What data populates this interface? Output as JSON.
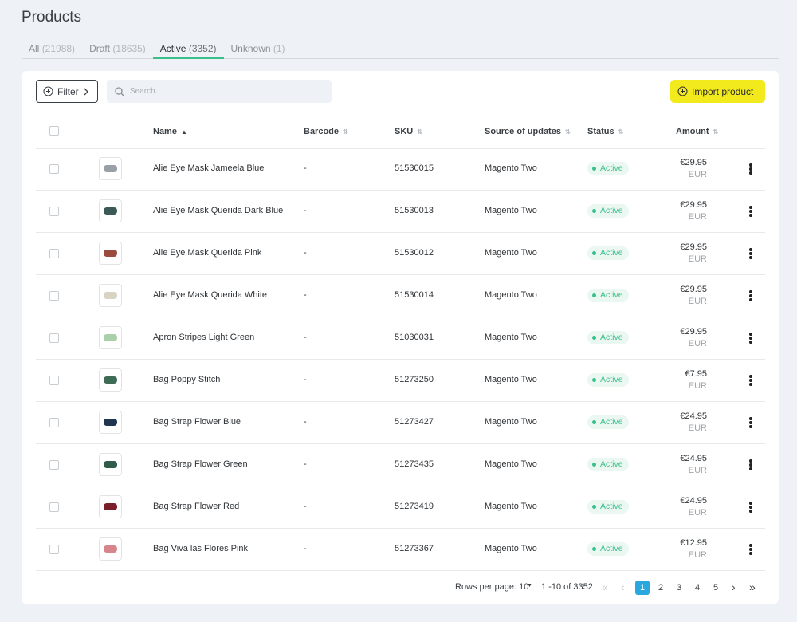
{
  "header": {
    "title": "Products"
  },
  "tabs": [
    {
      "label": "All",
      "count": "(21988)"
    },
    {
      "label": "Draft",
      "count": "(18635)"
    },
    {
      "label": "Active",
      "count": "(3352)"
    },
    {
      "label": "Unknown",
      "count": "(1)"
    }
  ],
  "toolbar": {
    "filter": "Filter",
    "search_placeholder": "Search...",
    "import": "Import product"
  },
  "table": {
    "columns": [
      "Name",
      "Barcode",
      "SKU",
      "Source of updates",
      "Status",
      "Amount"
    ],
    "rows": [
      [
        "Alie Eye Mask Jameela Blue",
        "-",
        "51530015",
        "Magento Two",
        "Active",
        "€29.95",
        "EUR"
      ],
      [
        "Alie Eye Mask Querida Dark Blue",
        "-",
        "51530013",
        "Magento Two",
        "Active",
        "€29.95",
        "EUR"
      ],
      [
        "Alie Eye Mask Querida Pink",
        "-",
        "51530012",
        "Magento Two",
        "Active",
        "€29.95",
        "EUR"
      ],
      [
        "Alie Eye Mask Querida White",
        "-",
        "51530014",
        "Magento Two",
        "Active",
        "€29.95",
        "EUR"
      ],
      [
        "Apron Stripes Light Green",
        "-",
        "51030031",
        "Magento Two",
        "Active",
        "€29.95",
        "EUR"
      ],
      [
        "Bag Poppy Stitch",
        "-",
        "51273250",
        "Magento Two",
        "Active",
        "€7.95",
        "EUR"
      ],
      [
        "Bag Strap Flower Blue",
        "-",
        "51273427",
        "Magento Two",
        "Active",
        "€24.95",
        "EUR"
      ],
      [
        "Bag Strap Flower Green",
        "-",
        "51273435",
        "Magento Two",
        "Active",
        "€24.95",
        "EUR"
      ],
      [
        "Bag Strap Flower Red",
        "-",
        "51273419",
        "Magento Two",
        "Active",
        "€24.95",
        "EUR"
      ],
      [
        "Bag Viva las Flores Pink",
        "-",
        "51273367",
        "Magento Two",
        "Active",
        "€12.95",
        "EUR"
      ]
    ]
  },
  "pagination": {
    "rows_per_page": "Rows per page: 10",
    "range": "1 -10 of 3352",
    "pages": [
      "1",
      "2",
      "3",
      "4",
      "5"
    ]
  }
}
